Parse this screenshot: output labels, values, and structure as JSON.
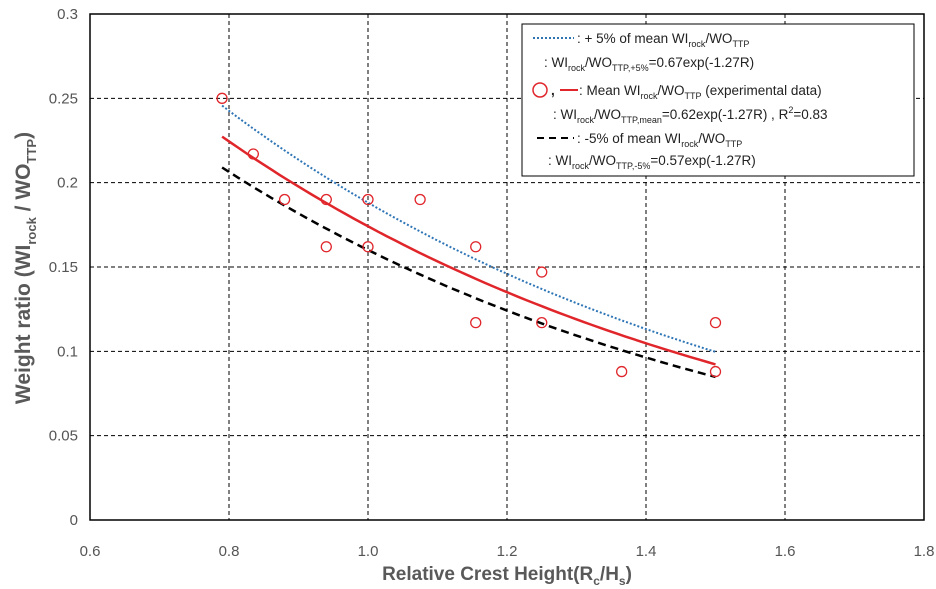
{
  "chart_data": {
    "type": "scatter",
    "title": "",
    "xlabel": {
      "main": "Relative Crest Height(R",
      "sub1": "c",
      "mid": "/H",
      "sub2": "s",
      "end": ")"
    },
    "ylabel": {
      "main": "Weight ratio (WI",
      "sub1": "rock",
      "mid": " / WO",
      "sub2": "TTP",
      "end": ")"
    },
    "xlim": [
      0.6,
      1.8
    ],
    "ylim": [
      0,
      0.3
    ],
    "xticks": [
      "0.6",
      "0.8",
      "1.0",
      "1.2",
      "1.4",
      "1.6",
      "1.8"
    ],
    "yticks": [
      "0",
      "0.05",
      "0.1",
      "0.15",
      "0.2",
      "0.25",
      "0.3"
    ],
    "grid": true,
    "points": {
      "name": "Mean WIrock/WOTTP (experimental data)",
      "x": [
        0.79,
        0.835,
        0.88,
        0.94,
        0.94,
        1.0,
        1.0,
        1.075,
        1.155,
        1.155,
        1.25,
        1.25,
        1.365,
        1.5,
        1.5
      ],
      "y": [
        0.25,
        0.217,
        0.19,
        0.19,
        0.162,
        0.19,
        0.162,
        0.19,
        0.162,
        0.117,
        0.147,
        0.117,
        0.088,
        0.117,
        0.088
      ]
    },
    "curves": [
      {
        "name": "+5% of mean",
        "coef": 0.67,
        "k": -1.27,
        "x_range": [
          0.79,
          1.5
        ],
        "color": "#2e75b6",
        "style": "dotted"
      },
      {
        "name": "mean",
        "coef": 0.62,
        "k": -1.27,
        "x_range": [
          0.79,
          1.5
        ],
        "color": "#e0262b",
        "style": "solid"
      },
      {
        "name": "-5% of mean",
        "coef": 0.57,
        "k": -1.27,
        "x_range": [
          0.79,
          1.5
        ],
        "color": "#000000",
        "style": "dashed"
      }
    ],
    "legend": {
      "position": "top-right",
      "entries": [
        {
          "label": ": + 5% of mean WI",
          "sub": "rock",
          "mid": "/WO",
          "sub2": "TTP"
        },
        {
          "label": ": WI",
          "sub": "rock",
          "mid": "/WO",
          "sub2": "TTP,+5%",
          "end": "=0.67exp(-1.27R)"
        },
        {
          "label": ",",
          "tail": "  :  Mean WI",
          "sub": "rock",
          "mid": "/WO",
          "sub2": "TTP",
          "end": " (experimental data)"
        },
        {
          "label": ": WI",
          "sub": "rock",
          "mid": "/WO",
          "sub2": "TTP,mean",
          "end": "=0.62exp(-1.27R) , R",
          "sup": "2",
          "end2": "=0.83"
        },
        {
          "label": ": -5% of mean WI",
          "sub": "rock",
          "mid": "/WO",
          "sub2": "TTP"
        },
        {
          "label": ": WI",
          "sub": "rock",
          "mid": "/WO",
          "sub2": "TTP,-5%",
          "end": "=0.57exp(-1.27R)"
        }
      ]
    },
    "colors": {
      "points": "#e0262b",
      "axis": "#000000",
      "grid": "#000000",
      "ticks": "#555555"
    }
  }
}
